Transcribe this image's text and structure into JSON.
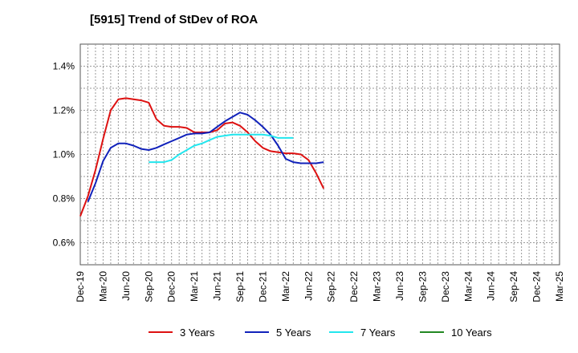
{
  "chart_data": {
    "type": "line",
    "title": "[5915]  Trend of StDev of ROA",
    "xlabel": "",
    "ylabel": "",
    "x_ticks": [
      "Dec-19",
      "Mar-20",
      "Jun-20",
      "Sep-20",
      "Dec-20",
      "Mar-21",
      "Jun-21",
      "Sep-21",
      "Dec-21",
      "Mar-22",
      "Jun-22",
      "Sep-22",
      "Dec-22",
      "Mar-23",
      "Jun-23",
      "Sep-23",
      "Dec-23",
      "Mar-24",
      "Jun-24",
      "Sep-24",
      "Dec-24",
      "Mar-25"
    ],
    "y_ticks": [
      "0.6%",
      "0.8%",
      "1.0%",
      "1.2%",
      "1.4%"
    ],
    "y_tick_values": [
      0.6,
      0.8,
      1.0,
      1.2,
      1.4
    ],
    "ylim": [
      0.5,
      1.5
    ],
    "grid": true,
    "legend_position": "bottom",
    "series": [
      {
        "name": "3 Years",
        "color": "#dd1111",
        "start_index": 0,
        "values": [
          0.72,
          0.81,
          0.93,
          1.07,
          1.2,
          1.25,
          1.255,
          1.25,
          1.245,
          1.235,
          1.16,
          1.13,
          1.125,
          1.125,
          1.12,
          1.1,
          1.1,
          1.1,
          1.11,
          1.14,
          1.145,
          1.13,
          1.1,
          1.06,
          1.03,
          1.015,
          1.01,
          1.005,
          1.005,
          1.0,
          0.975,
          0.915,
          0.845
        ]
      },
      {
        "name": "5 Years",
        "color": "#1122bb",
        "start_index": 1,
        "values": [
          0.785,
          0.87,
          0.97,
          1.03,
          1.05,
          1.05,
          1.04,
          1.025,
          1.02,
          1.03,
          1.045,
          1.06,
          1.075,
          1.09,
          1.095,
          1.095,
          1.1,
          1.125,
          1.15,
          1.17,
          1.19,
          1.18,
          1.155,
          1.125,
          1.09,
          1.04,
          0.98,
          0.965,
          0.96,
          0.96,
          0.96,
          0.965
        ]
      },
      {
        "name": "7 Years",
        "color": "#22e6ee",
        "start_index": 9,
        "values": [
          0.965,
          0.965,
          0.965,
          0.975,
          1.0,
          1.02,
          1.04,
          1.05,
          1.065,
          1.08,
          1.085,
          1.09,
          1.09,
          1.09,
          1.09,
          1.09,
          1.085,
          1.075,
          1.075,
          1.075
        ]
      },
      {
        "name": "10 Years",
        "color": "#228822",
        "start_index": 0,
        "values": []
      }
    ]
  }
}
